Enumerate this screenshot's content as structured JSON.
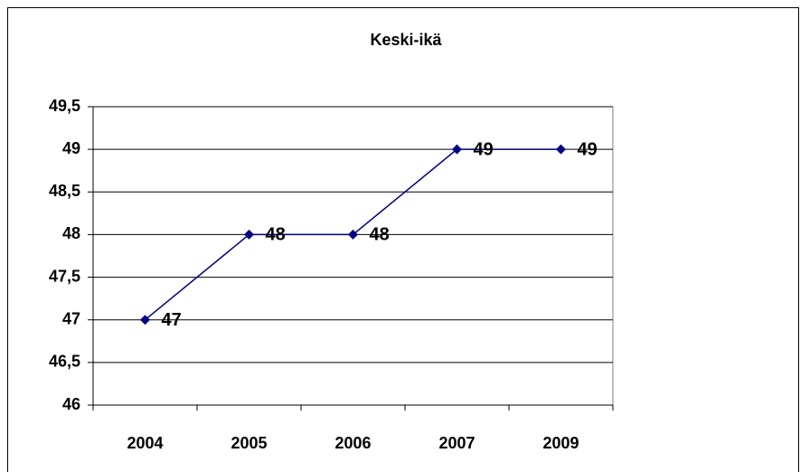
{
  "chart_data": {
    "type": "line",
    "title": "Keski-ikä",
    "categories": [
      "2004",
      "2005",
      "2006",
      "2007",
      "2009"
    ],
    "series": [
      {
        "name": "Keski-ikä",
        "color": "#000080",
        "values": [
          47,
          48,
          48,
          49,
          49
        ]
      }
    ],
    "ylim": [
      46,
      49.5
    ],
    "yticks": [
      46,
      {
        "value": 46.5,
        "label": "46,5"
      },
      47,
      {
        "value": 47.5,
        "label": "47,5"
      },
      48,
      {
        "value": 48.5,
        "label": "48,5"
      },
      49,
      {
        "value": 49.5,
        "label": "49,5"
      }
    ],
    "grid": true
  }
}
